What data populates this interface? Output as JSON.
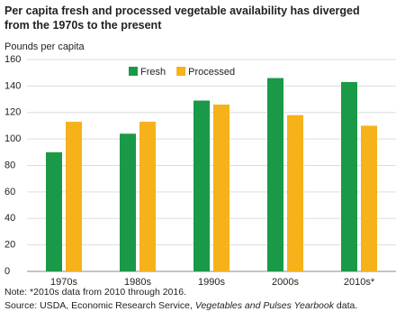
{
  "chart_data": {
    "type": "bar",
    "title": "Per capita fresh and processed vegetable availability has diverged from the 1970s to the present",
    "y_label": "Pounds per capita",
    "categories": [
      "1970s",
      "1980s",
      "1990s",
      "2000s",
      "2010s*"
    ],
    "series": [
      {
        "name": "Fresh",
        "color": "#1a9a48",
        "values": [
          90,
          104,
          129,
          146,
          143
        ]
      },
      {
        "name": "Processed",
        "color": "#f5b21b",
        "values": [
          113,
          113,
          126,
          118,
          110
        ]
      }
    ],
    "ylim": [
      0,
      160
    ],
    "yticks": [
      0,
      20,
      40,
      60,
      80,
      100,
      120,
      140,
      160
    ],
    "grid": true,
    "legend": "top",
    "note": "Note: *2010s data from 2010 through 2016.",
    "source": {
      "prefix": "Source: USDA, Economic Research Service, ",
      "italic": "Vegetables and Pulses Yearbook",
      "suffix": " data."
    }
  }
}
